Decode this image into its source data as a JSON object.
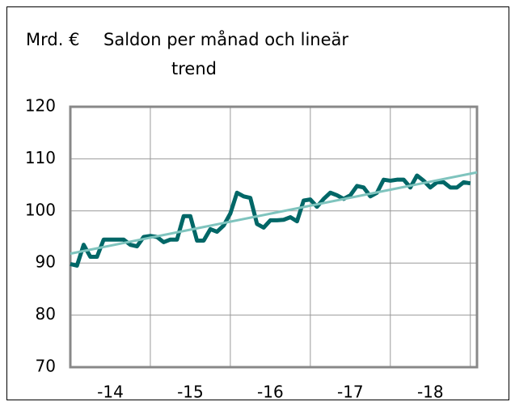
{
  "chart_data": {
    "type": "line",
    "y_label": "Mrd. €",
    "title_lines": [
      "Saldon per månad och lineär",
      "trend"
    ],
    "xlim": [
      0,
      61
    ],
    "xticks": [
      {
        "value": 6,
        "label": "-14"
      },
      {
        "value": 18,
        "label": "-15"
      },
      {
        "value": 30,
        "label": "-16"
      },
      {
        "value": 42,
        "label": "-17"
      },
      {
        "value": 54,
        "label": "-18"
      }
    ],
    "xgrid": [
      12,
      24,
      36,
      48,
      60
    ],
    "ylim": [
      70,
      120
    ],
    "yticks": [
      70,
      80,
      90,
      100,
      110,
      120
    ],
    "grid": true,
    "series": [
      {
        "color": "#006767",
        "x": [
          0,
          1,
          2,
          3,
          4,
          5,
          6,
          7,
          8,
          9,
          10,
          11,
          12,
          13,
          14,
          15,
          16,
          17,
          18,
          19,
          20,
          21,
          22,
          23,
          24,
          25,
          26,
          27,
          28,
          29,
          30,
          31,
          32,
          33,
          34,
          35,
          36,
          37,
          38,
          39,
          40,
          41,
          42,
          43,
          44,
          45,
          46,
          47,
          48,
          49,
          50,
          51,
          52,
          53,
          54,
          55,
          56,
          57,
          58,
          59,
          60
        ],
        "values": [
          89.8,
          89.5,
          93.5,
          91.2,
          91.2,
          94.5,
          94.5,
          94.5,
          94.5,
          93.5,
          93.2,
          95.0,
          95.2,
          95.0,
          94.0,
          94.5,
          94.5,
          99.0,
          99.0,
          94.3,
          94.3,
          96.5,
          96.0,
          97.2,
          99.5,
          103.5,
          102.8,
          102.5,
          97.5,
          96.8,
          98.2,
          98.2,
          98.3,
          98.8,
          98.0,
          102.0,
          102.2,
          100.8,
          102.3,
          103.5,
          103.0,
          102.3,
          103.0,
          104.8,
          104.5,
          102.8,
          103.5,
          106.0,
          105.8,
          106.0,
          106.0,
          104.5,
          106.8,
          105.8,
          104.5,
          105.5,
          105.5,
          104.5,
          104.5,
          105.5,
          105.3
        ]
      },
      {
        "color": "#7fc4be",
        "x": [
          0,
          61
        ],
        "values": [
          91.8,
          107.4
        ]
      }
    ]
  }
}
